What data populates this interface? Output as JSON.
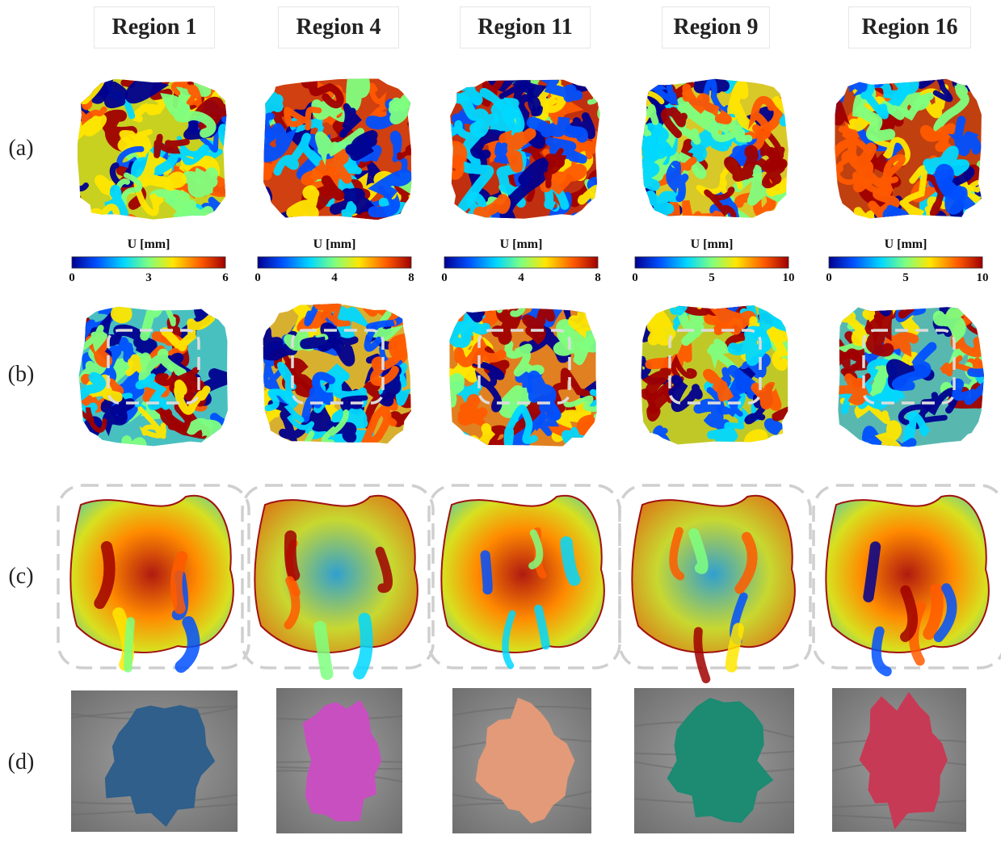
{
  "columns": [
    {
      "title": "Region 1",
      "colorbar": {
        "label": "U [mm]",
        "ticks": [
          "0",
          "3",
          "6"
        ]
      },
      "region_color": "#2f5f8a"
    },
    {
      "title": "Region 4",
      "colorbar": {
        "label": "U [mm]",
        "ticks": [
          "0",
          "4",
          "8"
        ]
      },
      "region_color": "#c84fc0"
    },
    {
      "title": "Region 11",
      "colorbar": {
        "label": "U [mm]",
        "ticks": [
          "0",
          "4",
          "8"
        ]
      },
      "region_color": "#e39a78"
    },
    {
      "title": "Region 9",
      "colorbar": {
        "label": "U [mm]",
        "ticks": [
          "0",
          "5",
          "10"
        ]
      },
      "region_color": "#1d8a72"
    },
    {
      "title": "Region 16",
      "colorbar": {
        "label": "U [mm]",
        "ticks": [
          "0",
          "5",
          "10"
        ]
      },
      "region_color": "#c73a55"
    }
  ],
  "rows": [
    "(a)",
    "(b)",
    "(c)",
    "(d)"
  ],
  "colormap": [
    "#00008f",
    "#0050ff",
    "#00d8ff",
    "#7fff7f",
    "#ffe600",
    "#ff5a00",
    "#a00000"
  ],
  "brain_surface_color": "#8e8e8e"
}
